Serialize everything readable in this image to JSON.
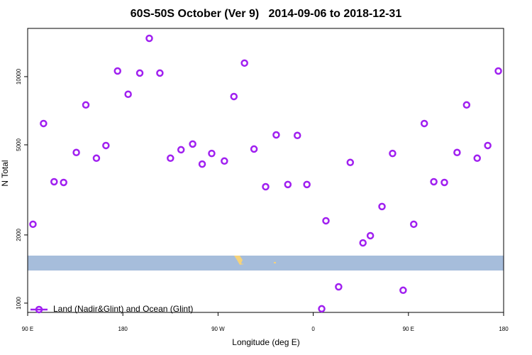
{
  "chart_data": {
    "type": "scatter",
    "title": "60S-50S October (Ver 9)   2014-09-06 to 2018-12-31",
    "x_label": "Longitude (deg E)",
    "y_label": "N Total",
    "y_scale": "log",
    "legend_position": "bottom-left",
    "xlim": [
      90,
      540
    ],
    "xticks": [
      {
        "value": 90,
        "label": "90 E"
      },
      {
        "value": 180,
        "label": "180"
      },
      {
        "value": 270,
        "label": "90 W"
      },
      {
        "value": 360,
        "label": "0"
      },
      {
        "value": 450,
        "label": "90 E"
      },
      {
        "value": 540,
        "label": "180"
      }
    ],
    "ylim": [
      910,
      16330
    ],
    "yticks": [
      1000,
      2000,
      5000,
      10000
    ],
    "series": [
      {
        "name": "Land (Nadir&Glint) and Ocean (Glint)",
        "color": "#a020f0",
        "x": [
          95,
          105,
          115,
          124,
          136,
          145,
          155,
          164,
          175,
          185,
          196,
          205,
          215,
          225,
          235,
          246,
          255,
          264,
          276,
          285,
          295,
          304,
          315,
          325,
          336,
          345,
          354,
          368,
          372,
          384,
          395,
          407,
          414,
          425,
          435,
          445,
          455,
          465,
          474,
          484,
          496,
          505,
          515,
          525,
          535
        ],
        "values": [
          2230,
          6210,
          3435,
          3410,
          4625,
          7500,
          4365,
          4965,
          10590,
          8360,
          10370,
          14760,
          10370,
          4365,
          4755,
          5040,
          4110,
          4580,
          4240,
          8170,
          11480,
          4790,
          3265,
          5530,
          3340,
          5500,
          3340,
          944,
          2310,
          1180,
          4180,
          1845,
          1985,
          2670,
          4580,
          1140,
          2230,
          6210,
          3435,
          3410,
          4625,
          7500,
          4365,
          4965,
          10590
        ]
      }
    ]
  }
}
